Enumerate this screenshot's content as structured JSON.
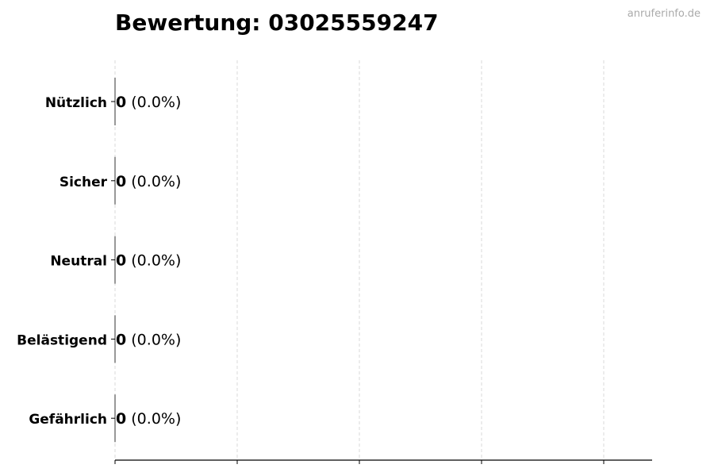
{
  "title": "Bewertung: 03025559247",
  "watermark": "anruferinfo.de",
  "chart_data": {
    "type": "bar",
    "orientation": "horizontal",
    "title": "Bewertung: 03025559247",
    "categories": [
      "Nützlich",
      "Sicher",
      "Neutral",
      "Belästigend",
      "Gefährlich"
    ],
    "values": [
      0,
      0,
      0,
      0,
      0
    ],
    "data_labels": [
      "0 (0.0%)",
      "0 (0.0%)",
      "0 (0.0%)",
      "0 (0.0%)",
      "0 (0.0%)"
    ],
    "value_labels": [
      "0",
      "0",
      "0",
      "0",
      "0"
    ],
    "percent_labels": [
      "(0.0%)",
      "(0.0%)",
      "(0.0%)",
      "(0.0%)",
      "(0.0%)"
    ],
    "xlim": [
      0,
      4.4
    ],
    "x_ticks": [
      0,
      1,
      2,
      3,
      4
    ],
    "x_tick_labels_shown": false,
    "grid": "x-dashed",
    "xlabel": "",
    "ylabel": ""
  }
}
